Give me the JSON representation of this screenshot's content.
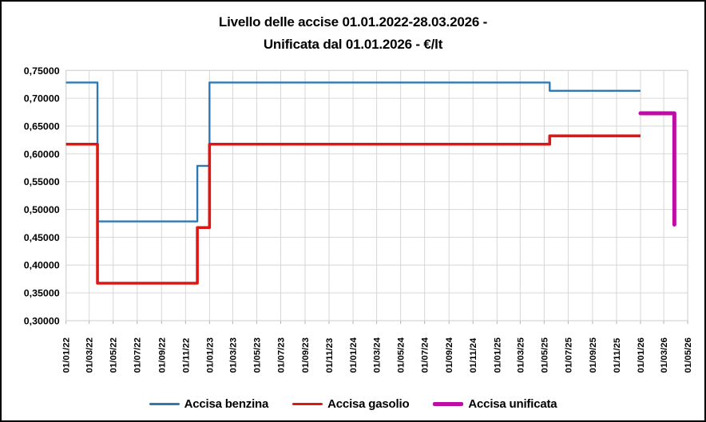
{
  "title": {
    "line1": "Livello delle accise 01.01.2022-28.03.2026 -",
    "line2": "Unificata dal 01.01.2026 - €/lt"
  },
  "chart_data": {
    "type": "line",
    "step_style": true,
    "title": "Livello delle accise 01.01.2022-28.03.2026 - Unificata dal 01.01.2026 - €/lt",
    "xlabel": "",
    "ylabel": "",
    "unit": "€/lt",
    "ylim": [
      0.3,
      0.75
    ],
    "grid": true,
    "legend_position": "bottom",
    "x_tick_rotation": 90,
    "colors": {
      "grid": "#D6D6D6",
      "tick": "#ADADAD",
      "text": "#000000"
    },
    "x_ticks": [
      "01/01/22",
      "01/03/22",
      "01/05/22",
      "01/07/22",
      "01/09/22",
      "01/11/22",
      "01/01/23",
      "01/03/23",
      "01/05/23",
      "01/07/23",
      "01/09/23",
      "01/11/23",
      "01/01/24",
      "01/03/24",
      "01/05/24",
      "01/07/24",
      "01/09/24",
      "01/11/24",
      "01/01/25",
      "01/03/25",
      "01/05/25",
      "01/07/25",
      "01/09/25",
      "01/11/25",
      "01/01/26",
      "01/03/26",
      "01/05/26"
    ],
    "y_ticks": [
      {
        "label": "0,75000",
        "v": 0.75
      },
      {
        "label": "0,70000",
        "v": 0.7
      },
      {
        "label": "0,65000",
        "v": 0.65
      },
      {
        "label": "0,60000",
        "v": 0.6
      },
      {
        "label": "0,55000",
        "v": 0.55
      },
      {
        "label": "0,50000",
        "v": 0.5
      },
      {
        "label": "0,45000",
        "v": 0.45
      },
      {
        "label": "0,40000",
        "v": 0.4
      },
      {
        "label": "0,35000",
        "v": 0.35
      },
      {
        "label": "0,30000",
        "v": 0.3
      }
    ],
    "series": [
      {
        "name": "Accisa benzina",
        "color": "#2E79B5",
        "width": 2.4,
        "cap": "butt",
        "points": [
          [
            "01/01/22",
            0.7284
          ],
          [
            "22/03/22",
            0.7284
          ],
          [
            "22/03/22",
            0.4784
          ],
          [
            "01/12/22",
            0.4784
          ],
          [
            "01/12/22",
            0.5784
          ],
          [
            "01/01/23",
            0.5784
          ],
          [
            "01/01/23",
            0.7284
          ],
          [
            "15/05/25",
            0.7284
          ],
          [
            "15/05/25",
            0.7134
          ],
          [
            "01/01/26",
            0.7134
          ]
        ]
      },
      {
        "name": "Accisa gasolio",
        "color": "#DE1715",
        "width": 3.6,
        "cap": "butt",
        "points": [
          [
            "01/01/22",
            0.6174
          ],
          [
            "22/03/22",
            0.6174
          ],
          [
            "22/03/22",
            0.3674
          ],
          [
            "01/12/22",
            0.3674
          ],
          [
            "01/12/22",
            0.4674
          ],
          [
            "01/01/23",
            0.4674
          ],
          [
            "01/01/23",
            0.6174
          ],
          [
            "15/05/25",
            0.6174
          ],
          [
            "15/05/25",
            0.6324
          ],
          [
            "01/01/26",
            0.6324
          ]
        ]
      },
      {
        "name": "Accisa unificata",
        "color": "#BE0DA7",
        "width": 5,
        "cap": "round",
        "points": [
          [
            "01/01/26",
            0.6729
          ],
          [
            "28/03/26",
            0.6729
          ],
          [
            "28/03/26",
            0.4729
          ]
        ]
      }
    ]
  }
}
